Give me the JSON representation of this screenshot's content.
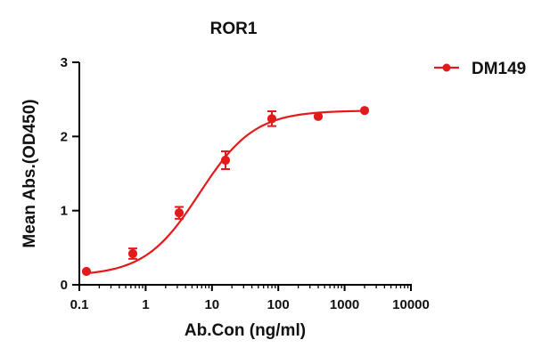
{
  "chart_data": {
    "type": "scatter",
    "title": "ROR1",
    "xlabel": "Ab.Con (ng/ml)",
    "ylabel": "Mean Abs.(OD450)",
    "x_scale": "log",
    "xlim": [
      0.1,
      10000
    ],
    "ylim": [
      0,
      3
    ],
    "x_tick_labels": [
      "0.1",
      "1",
      "10",
      "100",
      "1000",
      "10000"
    ],
    "y_tick_labels": [
      "0",
      "1",
      "2",
      "3"
    ],
    "grid": false,
    "legend_position": "top-right",
    "series": [
      {
        "name": "DM149",
        "color": "#e31a1c",
        "marker": "circle",
        "x": [
          0.128,
          0.64,
          3.2,
          16,
          80,
          400,
          2000
        ],
        "y": [
          0.18,
          0.42,
          0.97,
          1.68,
          2.24,
          2.27,
          2.35
        ],
        "y_error": [
          0.01,
          0.07,
          0.08,
          0.12,
          0.1,
          0.02,
          0.01
        ],
        "fit": {
          "model": "4PL",
          "bottom": 0.12,
          "top": 2.35,
          "ec50": 6.5,
          "hill": 1.05
        }
      }
    ]
  }
}
